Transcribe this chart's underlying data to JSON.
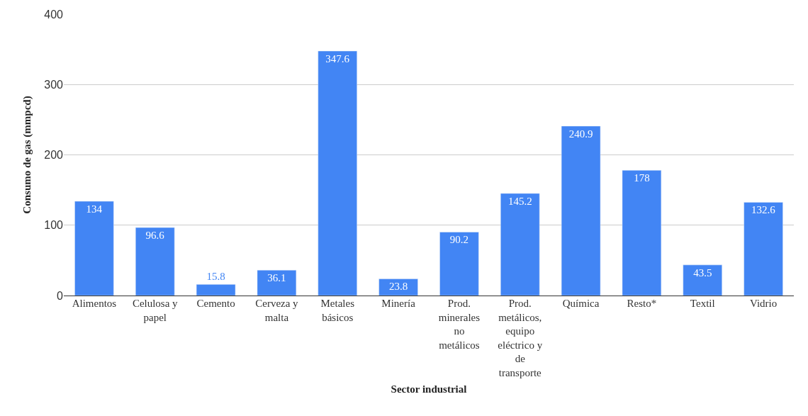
{
  "chart_data": {
    "type": "bar",
    "xlabel": "Sector industrial",
    "ylabel": "Consumo de gas (mmpcd)",
    "categories": [
      "Alimentos",
      "Celulosa y papel",
      "Cemento",
      "Cerveza y malta",
      "Metales básicos",
      "Minería",
      "Prod. minerales no metálicos",
      "Prod. metálicos, equipo eléctrico y de transporte",
      "Química",
      "Resto*",
      "Textil",
      "Vidrio"
    ],
    "values": [
      134,
      96.6,
      15.8,
      36.1,
      347.6,
      23.8,
      90.2,
      145.2,
      240.9,
      178,
      43.5,
      132.6
    ],
    "color": "#4285f4",
    "ylim": [
      0,
      400
    ],
    "yticks": [
      0,
      100,
      200,
      300,
      400
    ],
    "grid": "y",
    "legend": false,
    "data_labels": true
  }
}
